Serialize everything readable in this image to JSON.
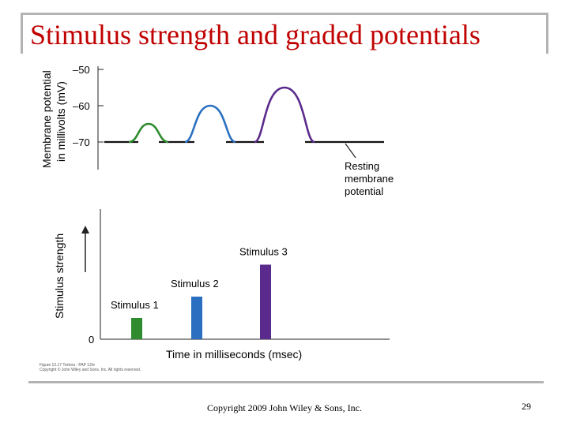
{
  "slide": {
    "title": "Stimulus strength and graded potentials",
    "footer": "Copyright 2009 John Wiley & Sons, Inc.",
    "page_number": "29",
    "figure_caption_line1": "Figure 12.17  Tortora - PAP 12/e",
    "figure_caption_line2": "Copyright © John Wiley and Sons, Inc. All rights reserved."
  },
  "chart_data": [
    {
      "type": "line",
      "ylabel_line1": "Membrane potential",
      "ylabel_line2": "in millivolts (mV)",
      "yticks": [
        -50,
        -60,
        -70
      ],
      "ytick_labels": [
        "–50",
        "–60",
        "–70"
      ],
      "ylim": [
        -70,
        -50
      ],
      "baseline": -70,
      "potentials": [
        {
          "name": "Stimulus 1",
          "peak": -65,
          "color": "#2e8b2e"
        },
        {
          "name": "Stimulus 2",
          "peak": -60,
          "color": "#2a6fc0"
        },
        {
          "name": "Stimulus 3",
          "peak": -55,
          "color": "#5a2a8c"
        }
      ],
      "annotation": [
        "Resting",
        "membrane",
        "potential"
      ]
    },
    {
      "type": "bar",
      "ylabel": "Stimulus strength",
      "xlabel": "Time in milliseconds (msec)",
      "zero_label": "0",
      "series": [
        {
          "name": "Stimulus 1",
          "value": 1,
          "color": "#2e8b2e"
        },
        {
          "name": "Stimulus 2",
          "value": 2,
          "color": "#2a6fc0"
        },
        {
          "name": "Stimulus 3",
          "value": 3.5,
          "color": "#5a2a8c"
        }
      ]
    }
  ]
}
